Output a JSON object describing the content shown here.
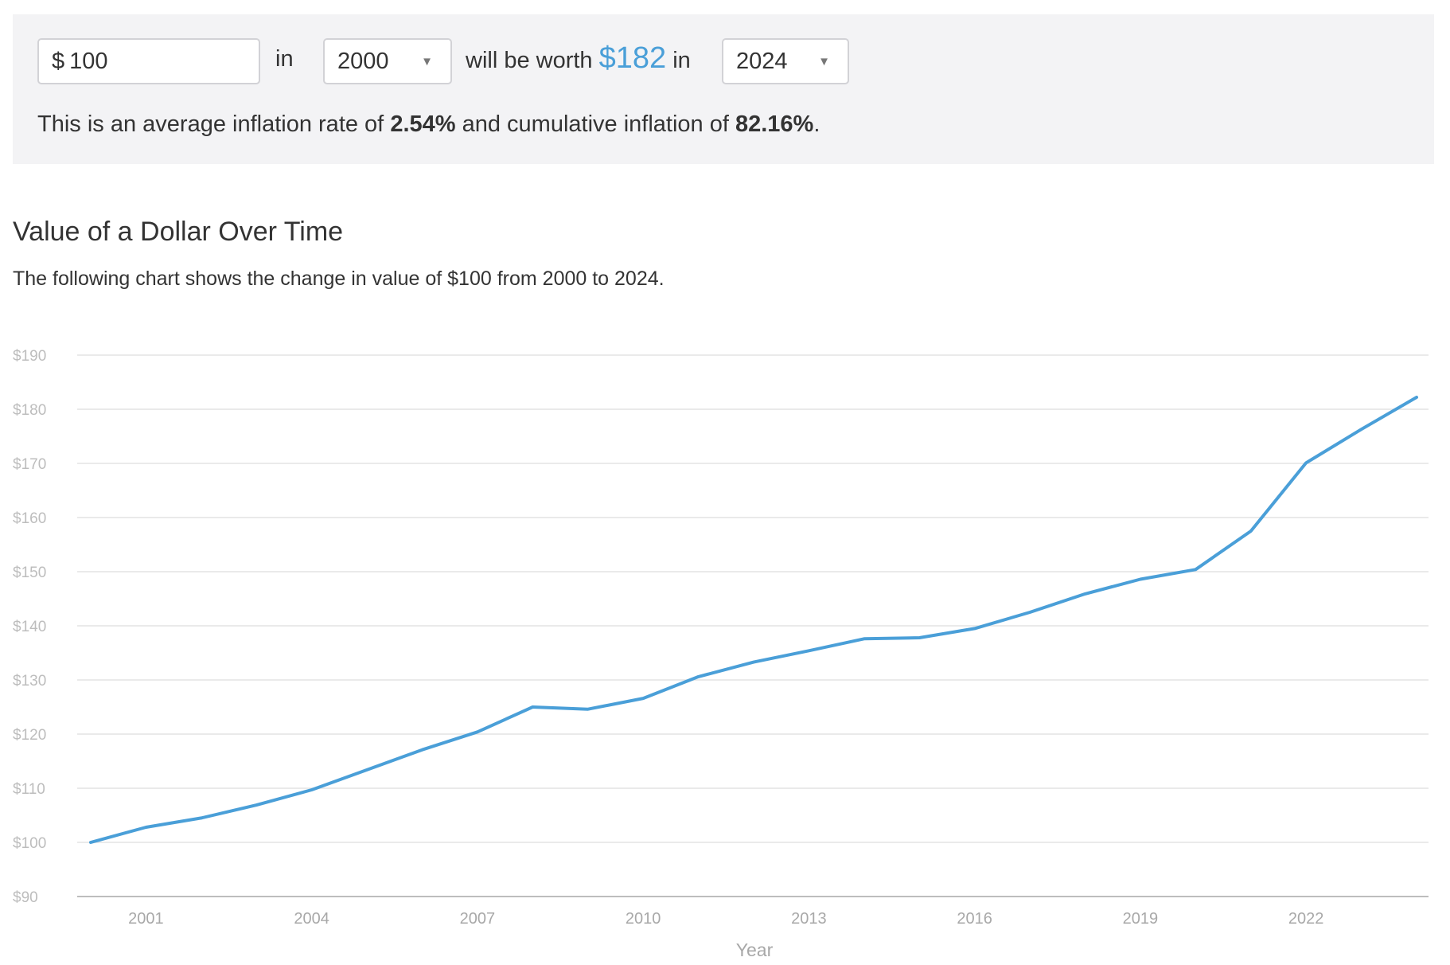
{
  "calculator": {
    "currency_symbol": "$",
    "amount_value": "100",
    "in_word": "in",
    "start_year": "2000",
    "will_be_worth_text": "will be worth",
    "worth_value": "$182",
    "in_word_2": "in",
    "end_year": "2024",
    "summary": {
      "prefix": "This is an average inflation rate of",
      "average_rate": "2.54%",
      "middle": "and cumulative inflation of",
      "cumulative": "82.16%",
      "suffix": "."
    }
  },
  "colors": {
    "accent": "#4a9fd8",
    "panel_background": "#f3f3f5",
    "gridline": "#e4e4e4",
    "axis_line": "#bdbdbd"
  },
  "chart_data": {
    "type": "line",
    "title": "Value of a Dollar Over Time",
    "subtitle": "The following chart shows the change in value of $100 from 2000 to 2024.",
    "xlabel": "Year",
    "ylabel": "",
    "x": [
      2000,
      2001,
      2002,
      2003,
      2004,
      2005,
      2006,
      2007,
      2008,
      2009,
      2010,
      2011,
      2012,
      2013,
      2014,
      2015,
      2016,
      2017,
      2018,
      2019,
      2020,
      2021,
      2022,
      2023,
      2024
    ],
    "series": [
      {
        "values": [
          100,
          102.8,
          104.5,
          106.9,
          109.7,
          113.4,
          117.1,
          120.4,
          125.0,
          124.6,
          126.6,
          130.6,
          133.3,
          135.4,
          137.6,
          137.8,
          139.5,
          142.5,
          145.9,
          148.6,
          150.4,
          157.5,
          170.1,
          176.3,
          182.2
        ],
        "color": "#4a9fd8"
      }
    ],
    "y_ticks": [
      "$90",
      "$100",
      "$110",
      "$120",
      "$130",
      "$140",
      "$150",
      "$160",
      "$170",
      "$180",
      "$190"
    ],
    "x_ticks": [
      "2001",
      "2004",
      "2007",
      "2010",
      "2013",
      "2016",
      "2019",
      "2022"
    ],
    "ylim": [
      90,
      190
    ],
    "xlim": [
      2000,
      2024
    ],
    "grid": true,
    "legend": "none"
  }
}
